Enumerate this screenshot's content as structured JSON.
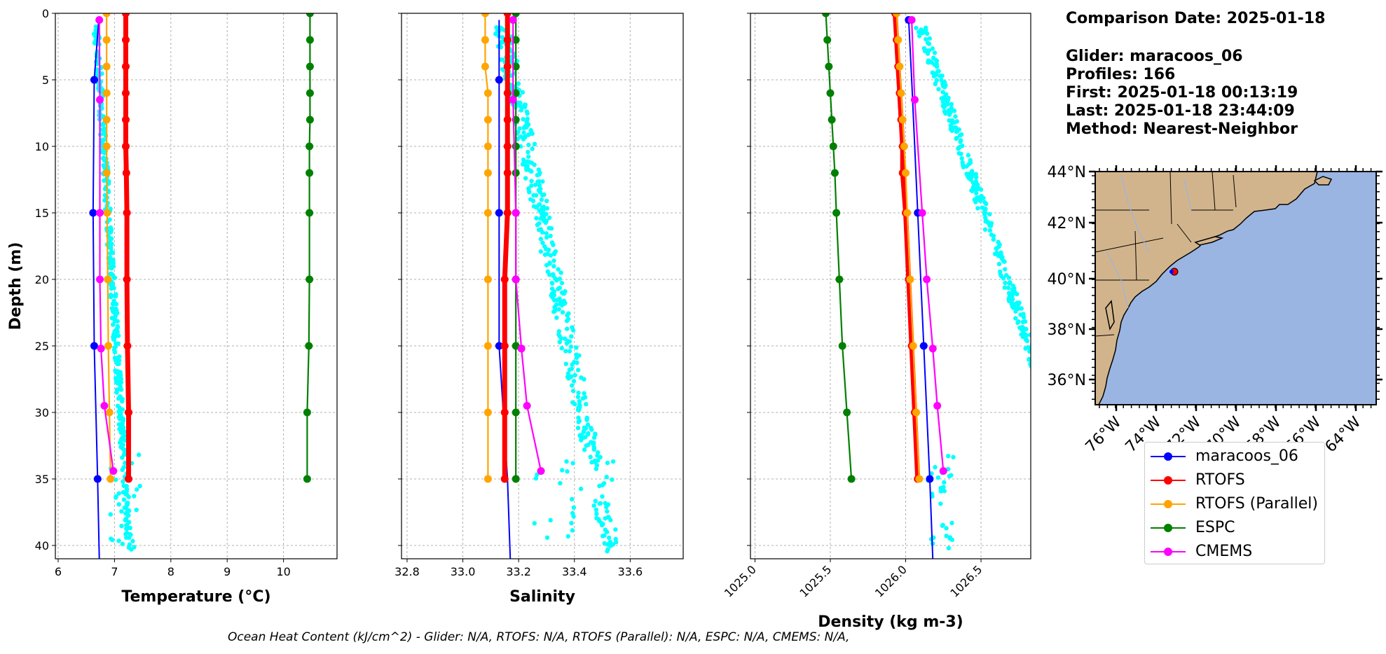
{
  "chart_data": [
    {
      "type": "line",
      "xlabel": "Temperature (°C)",
      "ylabel": "Depth (m)",
      "xlim": [
        5.95,
        10.95
      ],
      "ylim": [
        41,
        0
      ],
      "xticks": [
        6,
        7,
        8,
        9,
        10
      ],
      "yticks": [
        0,
        5,
        10,
        15,
        20,
        25,
        30,
        35,
        40
      ],
      "grid": true,
      "series": [
        {
          "name": "maracoos_06",
          "color": "#0000ff",
          "depth": [
            0.5,
            5,
            15,
            25,
            35,
            41
          ],
          "values": [
            6.72,
            6.64,
            6.62,
            6.64,
            6.7,
            6.73
          ],
          "markers_at": [
            5,
            15,
            25,
            35
          ]
        },
        {
          "name": "RTOFS",
          "color": "#ff0000",
          "depth": [
            0,
            2,
            4,
            6,
            8,
            10,
            12,
            15,
            20,
            25,
            30,
            35
          ],
          "values": [
            7.2,
            7.2,
            7.2,
            7.2,
            7.2,
            7.2,
            7.21,
            7.22,
            7.22,
            7.23,
            7.25,
            7.25
          ]
        },
        {
          "name": "RTOFS (Parallel)",
          "color": "#ffa500",
          "depth": [
            0,
            2,
            4,
            6,
            8,
            10,
            12,
            15,
            20,
            25,
            30,
            35
          ],
          "values": [
            6.86,
            6.86,
            6.86,
            6.86,
            6.86,
            6.86,
            6.86,
            6.87,
            6.88,
            6.89,
            6.91,
            6.93
          ]
        },
        {
          "name": "ESPC",
          "color": "#008000",
          "depth": [
            0,
            2,
            4,
            6,
            8,
            10,
            12,
            15,
            20,
            25,
            30,
            35
          ],
          "values": [
            10.47,
            10.47,
            10.47,
            10.47,
            10.47,
            10.46,
            10.46,
            10.46,
            10.46,
            10.45,
            10.42,
            10.42
          ]
        },
        {
          "name": "CMEMS",
          "color": "#ff00ff",
          "depth": [
            0.5,
            6.5,
            15,
            20,
            25.2,
            29.5,
            34.4
          ],
          "values": [
            6.73,
            6.74,
            6.74,
            6.74,
            6.76,
            6.82,
            6.98
          ]
        }
      ]
    },
    {
      "type": "line",
      "xlabel": "Salinity",
      "ylabel": "",
      "xlim": [
        32.78,
        33.79
      ],
      "ylim": [
        41,
        0
      ],
      "xticks": [
        32.8,
        33.0,
        33.2,
        33.4,
        33.6
      ],
      "grid": true,
      "series": [
        {
          "name": "maracoos_06",
          "color": "#0000ff",
          "depth": [
            0.5,
            5,
            15,
            25,
            35,
            41
          ],
          "values": [
            33.13,
            33.13,
            33.13,
            33.13,
            33.16,
            33.17
          ],
          "markers_at": [
            5,
            15,
            25
          ]
        },
        {
          "name": "RTOFS",
          "color": "#ff0000",
          "depth": [
            0,
            2,
            4,
            6,
            8,
            10,
            12,
            15,
            20,
            25,
            30,
            35
          ],
          "values": [
            33.16,
            33.16,
            33.16,
            33.16,
            33.16,
            33.16,
            33.16,
            33.16,
            33.15,
            33.15,
            33.15,
            33.15
          ]
        },
        {
          "name": "RTOFS (Parallel)",
          "color": "#ffa500",
          "depth": [
            0,
            2,
            4,
            6,
            8,
            10,
            12,
            15,
            20,
            25,
            30,
            35
          ],
          "values": [
            33.08,
            33.08,
            33.08,
            33.09,
            33.09,
            33.09,
            33.09,
            33.09,
            33.09,
            33.09,
            33.09,
            33.09
          ]
        },
        {
          "name": "ESPC",
          "color": "#008000",
          "depth": [
            0,
            2,
            4,
            6,
            8,
            10,
            12,
            15,
            20,
            25,
            30,
            35
          ],
          "values": [
            33.19,
            33.19,
            33.19,
            33.19,
            33.19,
            33.19,
            33.19,
            33.19,
            33.19,
            33.19,
            33.19,
            33.19
          ]
        },
        {
          "name": "CMEMS",
          "color": "#ff00ff",
          "depth": [
            0.5,
            6.5,
            15,
            20,
            25.2,
            29.5,
            34.4
          ],
          "values": [
            33.18,
            33.18,
            33.19,
            33.19,
            33.21,
            33.23,
            33.28
          ]
        }
      ]
    },
    {
      "type": "line",
      "xlabel": "Density (kg m-3)",
      "ylabel": "",
      "xlim": [
        1024.97,
        1026.83
      ],
      "ylim": [
        41,
        0
      ],
      "xticks": [
        1025.0,
        1025.5,
        1026.0,
        1026.5
      ],
      "grid": true,
      "series": [
        {
          "name": "maracoos_06",
          "color": "#0000ff",
          "depth": [
            0.5,
            5,
            15,
            25,
            35,
            41
          ],
          "values": [
            1026.02,
            1026.04,
            1026.08,
            1026.12,
            1026.16,
            1026.18
          ],
          "markers_at": [
            0.5,
            15,
            25,
            35
          ]
        },
        {
          "name": "RTOFS",
          "color": "#ff0000",
          "depth": [
            0,
            2,
            4,
            6,
            8,
            10,
            12,
            15,
            20,
            25,
            30,
            35
          ],
          "values": [
            1025.93,
            1025.94,
            1025.95,
            1025.96,
            1025.97,
            1025.98,
            1025.98,
            1026.0,
            1026.02,
            1026.04,
            1026.06,
            1026.08
          ]
        },
        {
          "name": "RTOFS (Parallel)",
          "color": "#ffa500",
          "depth": [
            0,
            2,
            4,
            6,
            8,
            10,
            12,
            15,
            20,
            25,
            30,
            35
          ],
          "values": [
            1025.94,
            1025.95,
            1025.96,
            1025.97,
            1025.98,
            1025.99,
            1026.0,
            1026.01,
            1026.03,
            1026.05,
            1026.07,
            1026.09
          ]
        },
        {
          "name": "ESPC",
          "color": "#008000",
          "depth": [
            0,
            2,
            4,
            6,
            8,
            10,
            12,
            15,
            20,
            25,
            30,
            35
          ],
          "values": [
            1025.47,
            1025.48,
            1025.49,
            1025.5,
            1025.51,
            1025.52,
            1025.53,
            1025.54,
            1025.56,
            1025.58,
            1025.61,
            1025.64
          ]
        },
        {
          "name": "CMEMS",
          "color": "#ff00ff",
          "depth": [
            0.5,
            6.5,
            15,
            20,
            25.2,
            29.5,
            34.4
          ],
          "values": [
            1026.04,
            1026.06,
            1026.11,
            1026.14,
            1026.18,
            1026.21,
            1026.25
          ]
        }
      ]
    }
  ],
  "info": {
    "comparison_date": "Comparison Date: 2025-01-18",
    "glider": "Glider: maracoos_06",
    "profiles": "Profiles: 166",
    "first": "First: 2025-01-18 00:13:19",
    "last": "Last: 2025-01-18 23:44:09",
    "method": "Method: Nearest-Neighbor"
  },
  "map": {
    "lat_labels": [
      "44°N",
      "42°N",
      "40°N",
      "38°N",
      "36°N"
    ],
    "lon_labels": [
      "76°W",
      "74°W",
      "72°W",
      "70°W",
      "68°W",
      "66°W",
      "64°W"
    ],
    "land_color": "#d2b48c",
    "ocean_color": "#9ab5e2",
    "glider_position_lat_lon": [
      40.3,
      -73.0
    ]
  },
  "legend": [
    "maracoos_06",
    "RTOFS",
    "RTOFS (Parallel)",
    "ESPC",
    "CMEMS"
  ],
  "footer": "Ocean Heat Content (kJ/cm^2) - Glider: N/A,  RTOFS: N/A,  RTOFS (Parallel): N/A,  ESPC: N/A,  CMEMS: N/A,"
}
